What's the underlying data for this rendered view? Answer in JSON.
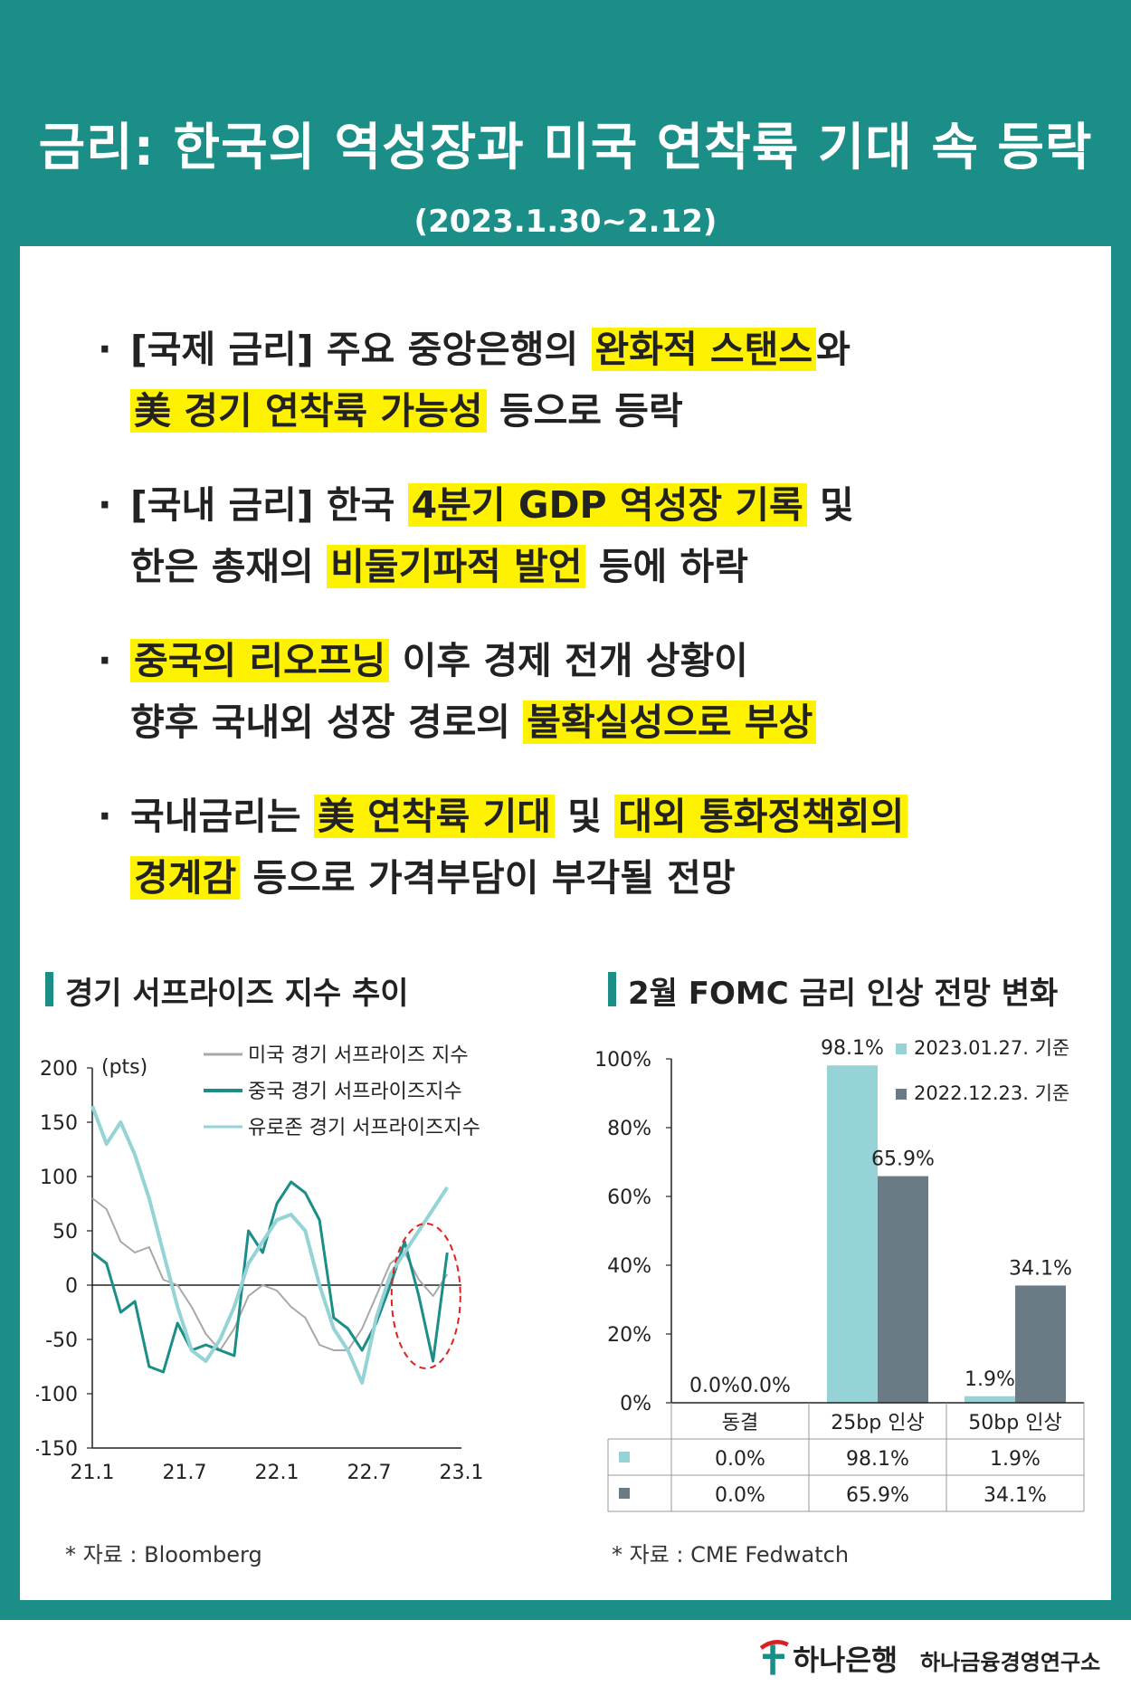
{
  "header": {
    "title": "금리: 한국의 역성장과 미국 연착륙 기대 속 등락",
    "period": "(2023.1.30~2.12)"
  },
  "bullets": [
    {
      "lines": [
        [
          {
            "t": "[국제 금리] 주요 중앙은행의 ",
            "hl": false
          },
          {
            "t": "완화적 스탠스",
            "hl": true
          },
          {
            "t": "와",
            "hl": false
          }
        ],
        [
          {
            "t": "美 경기 연착륙 가능성",
            "hl": true
          },
          {
            "t": " 등으로 등락",
            "hl": false
          }
        ]
      ]
    },
    {
      "lines": [
        [
          {
            "t": "[국내 금리] 한국 ",
            "hl": false
          },
          {
            "t": "4분기 GDP 역성장 기록",
            "hl": true
          },
          {
            "t": " 및",
            "hl": false
          }
        ],
        [
          {
            "t": "한은 총재의 ",
            "hl": false
          },
          {
            "t": "비둘기파적 발언",
            "hl": true
          },
          {
            "t": " 등에 하락",
            "hl": false
          }
        ]
      ]
    },
    {
      "lines": [
        [
          {
            "t": "중국의 리오프닝",
            "hl": true
          },
          {
            "t": " 이후 경제 전개 상황이",
            "hl": false
          }
        ],
        [
          {
            "t": "향후 국내외 성장 경로의 ",
            "hl": false
          },
          {
            "t": "불확실성으로 부상",
            "hl": true
          }
        ]
      ]
    },
    {
      "lines": [
        [
          {
            "t": "국내금리는 ",
            "hl": false
          },
          {
            "t": "美 연착륙 기대",
            "hl": true
          },
          {
            "t": " 및 ",
            "hl": false
          },
          {
            "t": "대외 통화정책회의",
            "hl": true
          }
        ],
        [
          {
            "t": "경계감",
            "hl": true
          },
          {
            "t": " 등으로 가격부담이 부각될 전망",
            "hl": false
          }
        ]
      ]
    }
  ],
  "bullet_mark": "·",
  "footer": {
    "bank": "하나은행",
    "institute": "하나금융경영연구소"
  },
  "chart_data": [
    {
      "type": "line",
      "title": "경기 서프라이즈 지수 추이",
      "unit_label": "(pts)",
      "ylim": [
        -150,
        200
      ],
      "yticks": [
        "200",
        "150",
        "100",
        "50",
        "0",
        "-50",
        "-100",
        "-150"
      ],
      "xticks": [
        "21.1",
        "21.7",
        "22.1",
        "22.7",
        "23.1"
      ],
      "x_range": [
        0,
        26
      ],
      "source": "* 자료 : Bloomberg",
      "grid": false,
      "legend_position": "top",
      "series": [
        {
          "name": "미국 경기 서프라이즈 지수",
          "color": "#a8a8a8",
          "x": [
            0,
            1,
            2,
            3,
            4,
            5,
            6,
            7,
            8,
            9,
            10,
            11,
            12,
            13,
            14,
            15,
            16,
            17,
            18,
            19,
            20,
            21,
            22,
            23,
            24,
            25
          ],
          "y": [
            80,
            70,
            40,
            30,
            35,
            5,
            0,
            -20,
            -45,
            -60,
            -40,
            -10,
            0,
            -5,
            -20,
            -30,
            -55,
            -60,
            -60,
            -40,
            -10,
            20,
            30,
            5,
            -10,
            10
          ]
        },
        {
          "name": "중국 경기 서프라이즈지수",
          "color": "#1a8e87",
          "x": [
            0,
            1,
            2,
            3,
            4,
            5,
            6,
            7,
            8,
            9,
            10,
            11,
            12,
            13,
            14,
            15,
            16,
            17,
            18,
            19,
            20,
            21,
            22,
            23,
            24,
            25
          ],
          "y": [
            30,
            20,
            -25,
            -15,
            -75,
            -80,
            -35,
            -60,
            -55,
            -60,
            -65,
            50,
            30,
            75,
            95,
            85,
            60,
            -30,
            -40,
            -60,
            -35,
            0,
            40,
            -10,
            -70,
            30
          ]
        },
        {
          "name": "유로존 경기 서프라이즈지수",
          "color": "#95d3d6",
          "x": [
            0,
            1,
            2,
            3,
            4,
            5,
            6,
            7,
            8,
            9,
            10,
            11,
            12,
            13,
            14,
            15,
            16,
            17,
            18,
            19,
            20,
            21,
            22,
            23,
            24,
            25
          ],
          "y": [
            165,
            130,
            150,
            120,
            80,
            30,
            -20,
            -60,
            -70,
            -50,
            -20,
            20,
            40,
            60,
            65,
            50,
            0,
            -40,
            -60,
            -90,
            -30,
            10,
            30,
            50,
            70,
            90
          ]
        }
      ],
      "annotation": "dashed-ellipse-highlight-2023.1"
    },
    {
      "type": "bar",
      "title": "2월 FOMC 금리 인상 전망 변화",
      "categories": [
        "동결",
        "25bp 인상",
        "50bp 인상"
      ],
      "ylim": [
        0,
        100
      ],
      "yticks": [
        "100%",
        "80%",
        "60%",
        "40%",
        "20%",
        "0%"
      ],
      "source": "* 자료 : CME Fedwatch",
      "legend_position": "top-right",
      "series": [
        {
          "name": "2023.01.27. 기준",
          "color": "#95d3d6",
          "values": [
            0.0,
            98.1,
            1.9
          ],
          "labels": [
            "0.0%",
            "98.1%",
            "1.9%"
          ]
        },
        {
          "name": "2022.12.23. 기준",
          "color": "#6b7b85",
          "values": [
            0.0,
            65.9,
            34.1
          ],
          "labels": [
            "0.0%",
            "65.9%",
            "34.1%"
          ]
        }
      ]
    }
  ]
}
